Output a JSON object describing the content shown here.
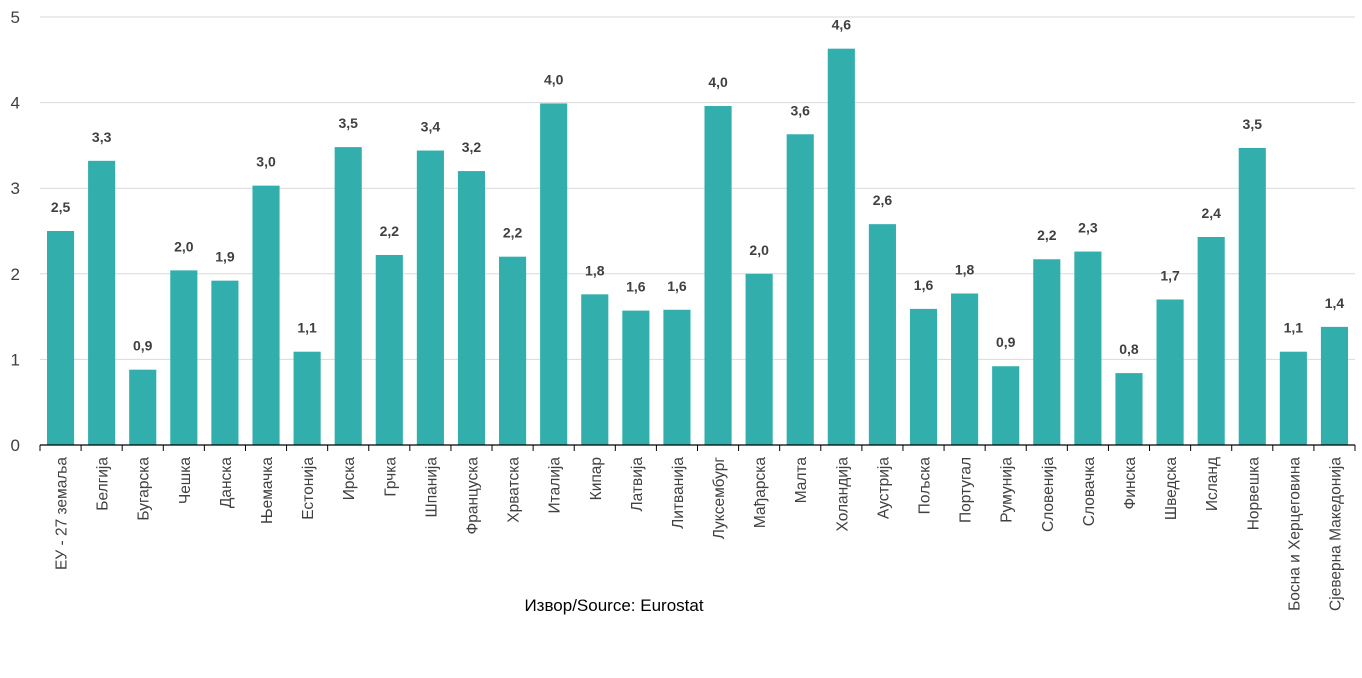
{
  "chart_data": {
    "type": "bar",
    "categories": [
      "ЕУ - 27 земаља",
      "Белгија",
      "Бугарска",
      "Чешка",
      "Данска",
      "Њемачка",
      "Естонија",
      "Ирска",
      "Грчка",
      "Шпанија",
      "Француска",
      "Хрватска",
      "Италија",
      "Кипар",
      "Латвија",
      "Литванија",
      "Луксембург",
      "Мађарска",
      "Малта",
      "Холандија",
      "Аустрија",
      "Пољска",
      "Португал",
      "Румунија",
      "Словенија",
      "Словачка",
      "Финска",
      "Шведска",
      "Исланд",
      "Норвешка",
      "Босна и Херцеговина",
      "Сјеверна Македонија"
    ],
    "values": [
      2.5,
      3.32,
      0.88,
      2.04,
      1.92,
      3.03,
      1.09,
      3.48,
      2.22,
      3.44,
      3.2,
      2.2,
      3.99,
      1.76,
      1.57,
      1.58,
      3.96,
      2.0,
      3.63,
      4.63,
      2.58,
      1.59,
      1.77,
      0.92,
      2.17,
      2.26,
      0.84,
      1.7,
      2.43,
      3.47,
      1.09,
      1.38
    ],
    "data_labels": [
      "2,5",
      "3,3",
      "0,9",
      "2,0",
      "1,9",
      "3,0",
      "1,1",
      "3,5",
      "2,2",
      "3,4",
      "3,2",
      "2,2",
      "4,0",
      "1,8",
      "1,6",
      "1,6",
      "4,0",
      "2,0",
      "3,6",
      "4,6",
      "2,6",
      "1,6",
      "1,8",
      "0,9",
      "2,2",
      "2,3",
      "0,8",
      "1,7",
      "2,4",
      "3,5",
      "1,1",
      "1,4"
    ],
    "y_ticks": [
      "0",
      "1",
      "2",
      "3",
      "4",
      "5"
    ],
    "ylim": [
      0,
      5
    ],
    "grid": true,
    "legend": "none",
    "bar_color": "#32AFAD",
    "source": "Извор/Source: Eurostat"
  }
}
